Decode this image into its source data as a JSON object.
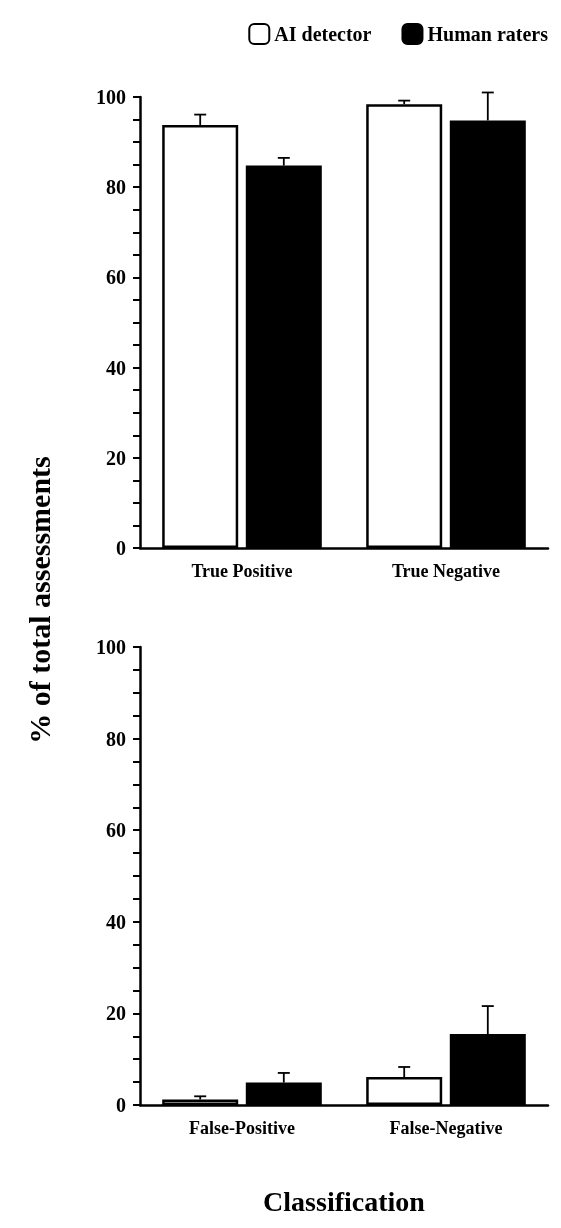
{
  "chart_data": [
    {
      "type": "bar",
      "ylabel": "% of total assessments",
      "categories": [
        "True Positive",
        "True Negative"
      ],
      "series": [
        {
          "name": "AI detector",
          "color": "#ffffff",
          "values": [
            93.8,
            98.4
          ],
          "errors": [
            [
              93.8,
              96.1
            ],
            [
              98.4,
              99.2
            ]
          ]
        },
        {
          "name": "Human raters",
          "color": "#000000",
          "values": [
            84.8,
            94.8
          ],
          "errors": [
            [
              84.8,
              86.5
            ],
            [
              94.8,
              101.0
            ]
          ]
        }
      ],
      "ylim": [
        0,
        100
      ],
      "yticks": [
        0,
        {
          "value": 5,
          "label": null
        },
        {
          "value": 10,
          "label": null
        },
        {
          "value": 15,
          "label": null
        },
        20,
        {
          "value": 25,
          "label": null
        },
        {
          "value": 30,
          "label": null
        },
        {
          "value": 35,
          "label": null
        },
        40,
        {
          "value": 45,
          "label": null
        },
        {
          "value": 50,
          "label": null
        },
        {
          "value": 55,
          "label": null
        },
        60,
        {
          "value": 65,
          "label": null
        },
        {
          "value": 70,
          "label": null
        },
        {
          "value": 75,
          "label": null
        },
        80,
        {
          "value": 85,
          "label": null
        },
        {
          "value": 90,
          "label": null
        },
        {
          "value": 95,
          "label": null
        },
        100
      ],
      "grid": false,
      "legend": "top right"
    },
    {
      "type": "bar",
      "xlabel": "Classification",
      "categories": [
        "False-Positive",
        "False-Negative"
      ],
      "series": [
        {
          "color": "#ffffff",
          "values": [
            1.2,
            6.1
          ],
          "errors": [
            [
              1.2,
              1.9
            ],
            [
              6.1,
              8.3
            ]
          ]
        },
        {
          "color": "#000000",
          "values": [
            4.9,
            15.5
          ],
          "errors": [
            [
              4.9,
              7.0
            ],
            [
              15.5,
              21.6
            ]
          ]
        }
      ],
      "ylim": [
        0,
        100
      ],
      "yticks": [
        0,
        {
          "value": 5,
          "label": null
        },
        {
          "value": 10,
          "label": null
        },
        {
          "value": 15,
          "label": null
        },
        20,
        {
          "value": 25,
          "label": null
        },
        {
          "value": 30,
          "label": null
        },
        {
          "value": 35,
          "label": null
        },
        40,
        {
          "value": 45,
          "label": null
        },
        {
          "value": 50,
          "label": null
        },
        {
          "value": 55,
          "label": null
        },
        60,
        {
          "value": 65,
          "label": null
        },
        {
          "value": 70,
          "label": null
        },
        {
          "value": 75,
          "label": null
        },
        80,
        {
          "value": 85,
          "label": null
        },
        {
          "value": 90,
          "label": null
        },
        {
          "value": 95,
          "label": null
        },
        100
      ],
      "grid": false
    }
  ]
}
